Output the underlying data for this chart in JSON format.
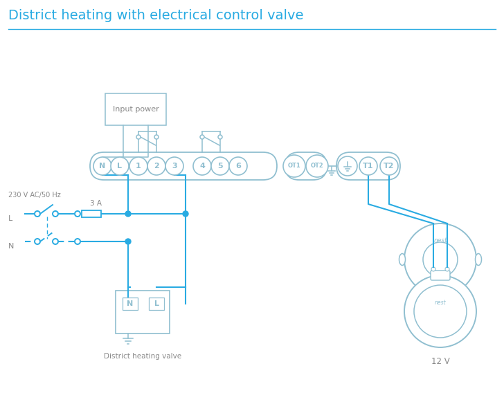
{
  "title": "District heating with electrical control valve",
  "title_color": "#29abe2",
  "title_fontsize": 14,
  "bg_color": "#ffffff",
  "wire_color": "#29abe2",
  "outline_color": "#90bfd0",
  "text_color": "#888888",
  "label_12V": "12 V",
  "label_district": "District heating valve",
  "label_input": "Input power",
  "label_3A": "3 A",
  "label_230V": "230 V AC/50 Hz",
  "label_L": "L",
  "label_N": "N",
  "label_nest": "nest",
  "figw": 7.28,
  "figh": 5.94,
  "dpi": 100
}
